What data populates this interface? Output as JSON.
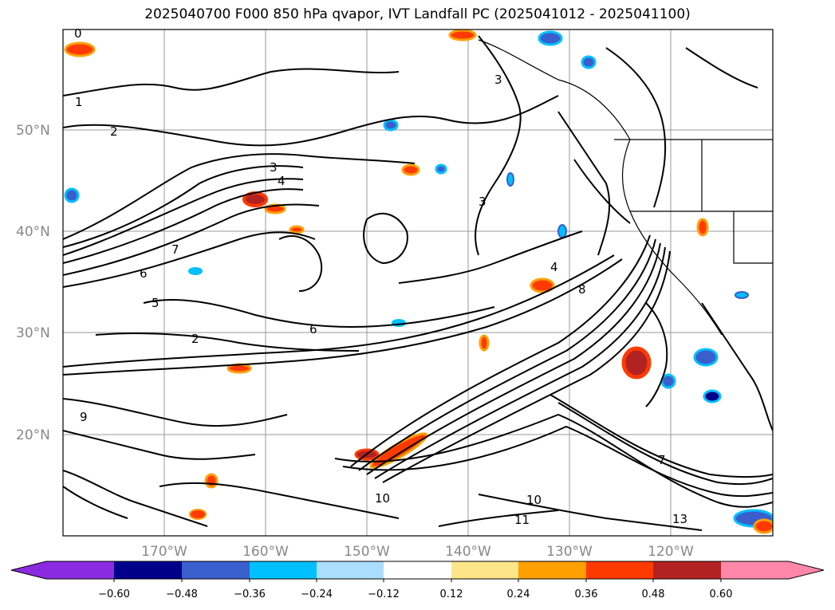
{
  "title": "2025040700 F000 850 hPa qvapor, IVT Landfall PC (2025041012 - 2025041100)",
  "map": {
    "lat_labels": [
      "50°N",
      "40°N",
      "30°N",
      "20°N"
    ],
    "lon_labels": [
      "170°W",
      "160°W",
      "150°W",
      "140°W",
      "130°W",
      "120°W"
    ],
    "contour_labels": [
      "0",
      "1",
      "2",
      "3",
      "4",
      "5",
      "6",
      "7",
      "8",
      "9",
      "10",
      "11",
      "13"
    ],
    "colors": {
      "coastline": "#000000",
      "gridline": "#999999",
      "pos_light": "#fde58a",
      "pos_mid": "#ff9f00",
      "pos_high": "#ff3a00",
      "pos_max": "#b22222",
      "neg_light": "#aaddff",
      "neg_mid": "#00bfff",
      "neg_high": "#3a5fcd"
    }
  },
  "colorbar": {
    "ticks": [
      "−0.60",
      "−0.48",
      "−0.36",
      "−0.24",
      "−0.12",
      "0.12",
      "0.24",
      "0.36",
      "0.48",
      "0.60"
    ],
    "colors": [
      "#8a2be2",
      "#00008b",
      "#3a5fcd",
      "#00bfff",
      "#aaddff",
      "#ffffff",
      "#fde58a",
      "#ff9f00",
      "#ff3a00",
      "#b22222",
      "#ff88aa"
    ]
  }
}
